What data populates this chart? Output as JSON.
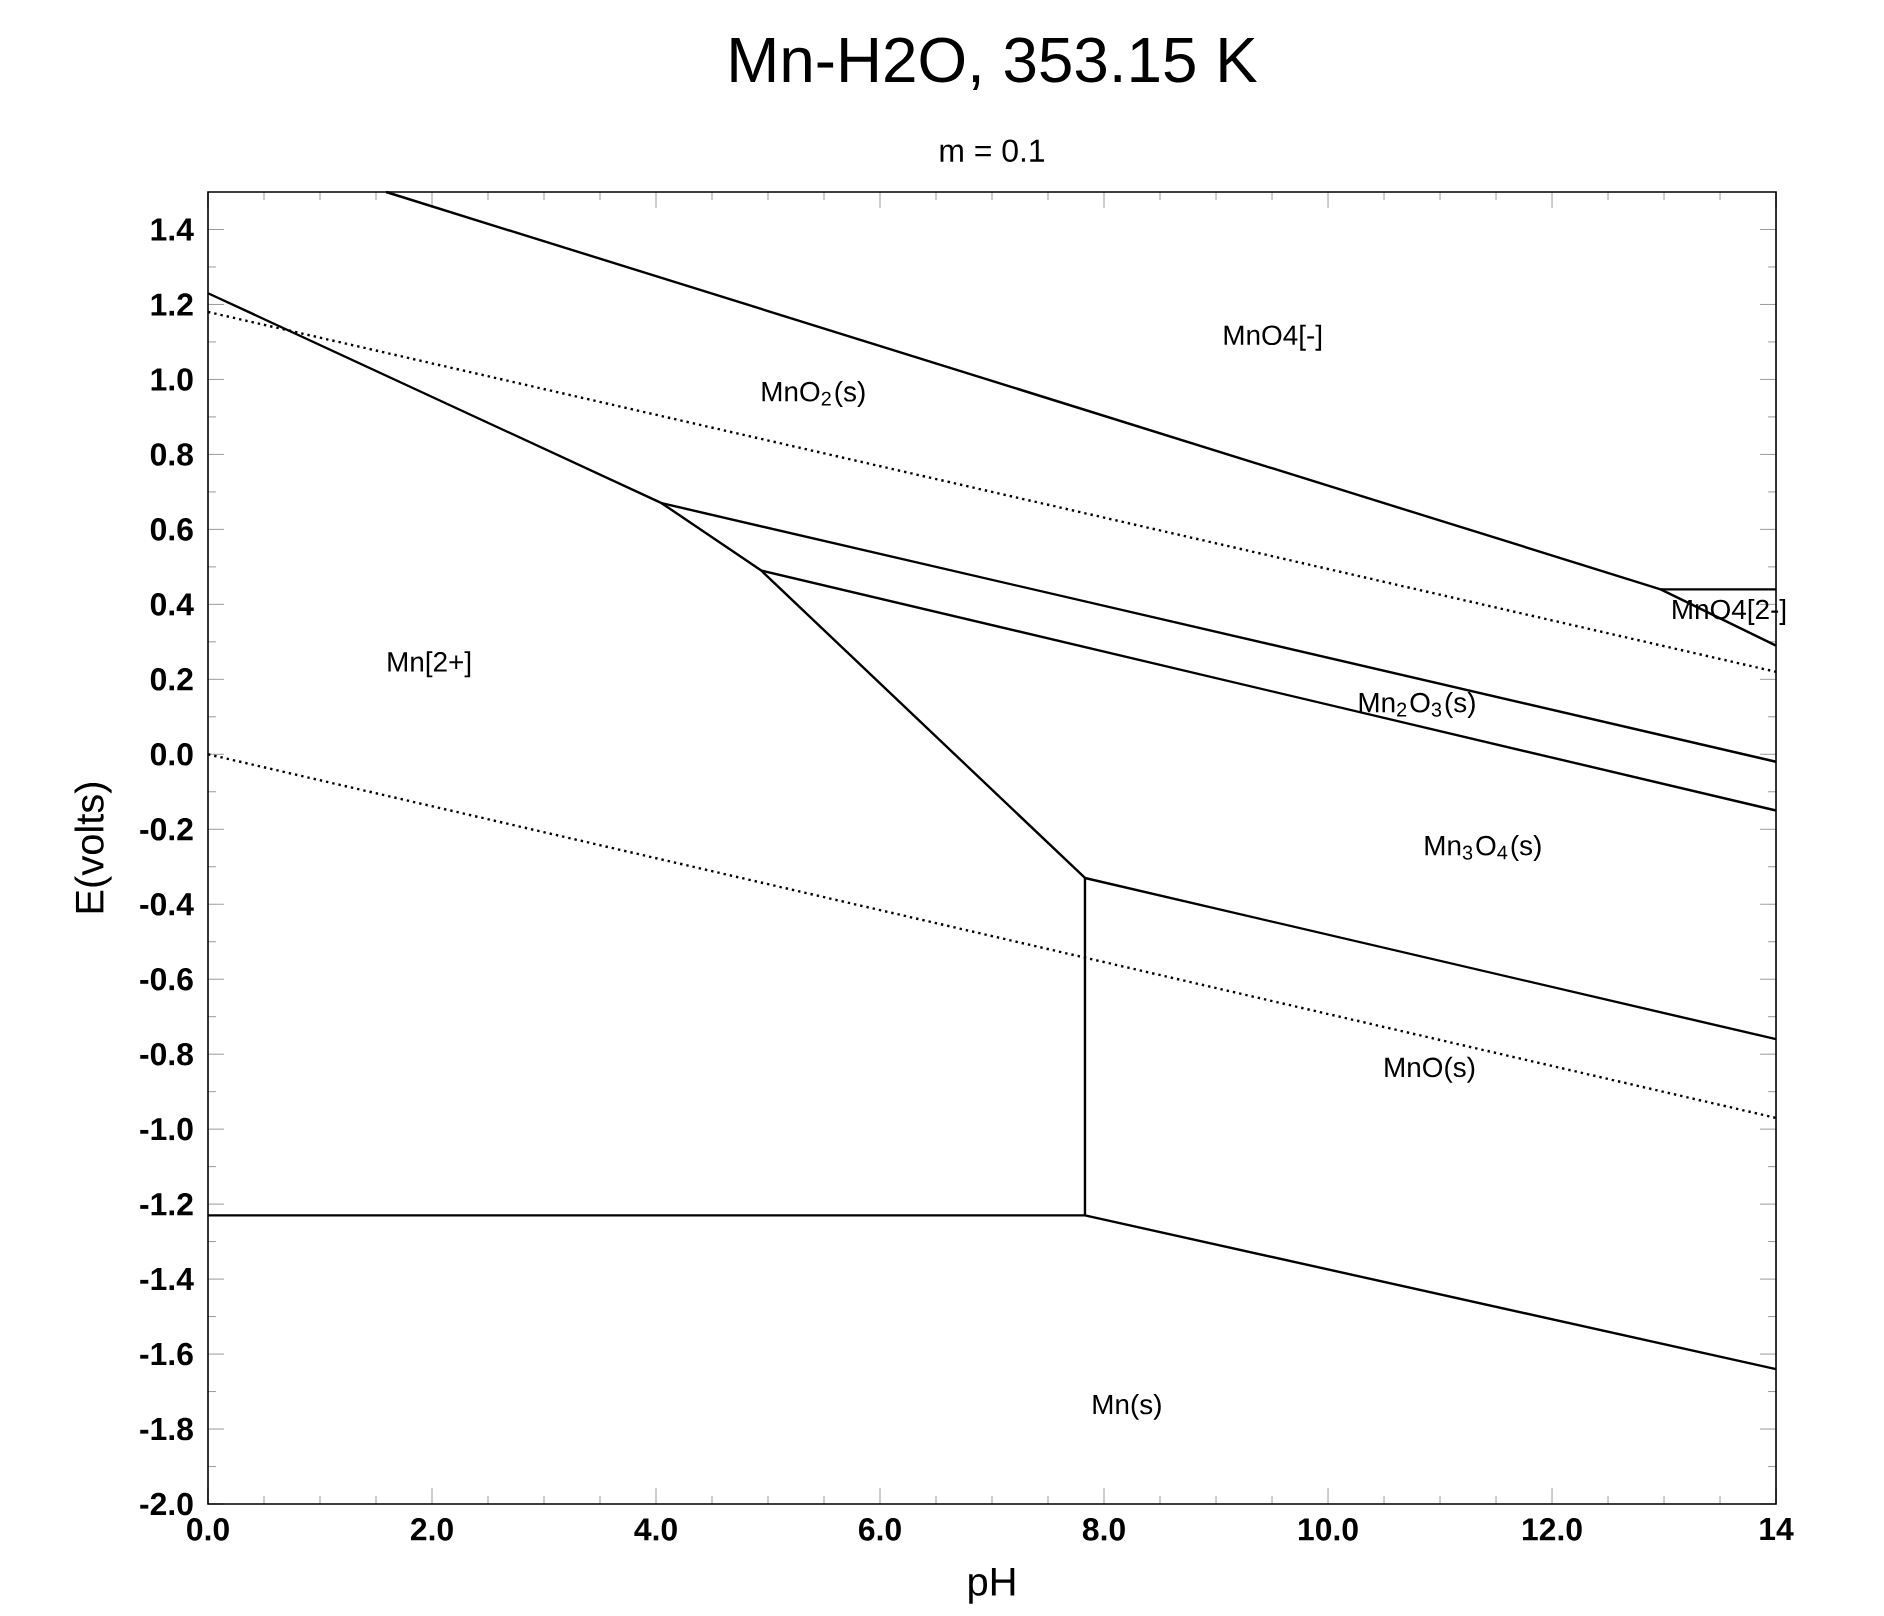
{
  "chart_data": {
    "type": "line",
    "title": "Mn-H2O, 353.15 K",
    "subtitle": "m = 0.1",
    "xlabel": "pH",
    "ylabel": "E(volts)",
    "xlim": [
      0,
      14
    ],
    "ylim": [
      -2.0,
      1.5
    ],
    "xticks": [
      {
        "value": 0,
        "label": "0.0"
      },
      {
        "value": 2,
        "label": "2.0"
      },
      {
        "value": 4,
        "label": "4.0"
      },
      {
        "value": 6,
        "label": "6.0"
      },
      {
        "value": 8,
        "label": "8.0"
      },
      {
        "value": 10,
        "label": "10.0"
      },
      {
        "value": 12,
        "label": "12.0"
      },
      {
        "value": 14,
        "label": "14"
      }
    ],
    "yticks": [
      {
        "value": -2.0,
        "label": "-2.0"
      },
      {
        "value": -1.8,
        "label": "-1.8"
      },
      {
        "value": -1.6,
        "label": "-1.6"
      },
      {
        "value": -1.4,
        "label": "-1.4"
      },
      {
        "value": -1.2,
        "label": "-1.2"
      },
      {
        "value": -1.0,
        "label": "-1.0"
      },
      {
        "value": -0.8,
        "label": "-0.8"
      },
      {
        "value": -0.6,
        "label": "-0.6"
      },
      {
        "value": -0.4,
        "label": "-0.4"
      },
      {
        "value": -0.2,
        "label": "-0.2"
      },
      {
        "value": 0.0,
        "label": "0.0"
      },
      {
        "value": 0.2,
        "label": "0.2"
      },
      {
        "value": 0.4,
        "label": "0.4"
      },
      {
        "value": 0.6,
        "label": "0.6"
      },
      {
        "value": 0.8,
        "label": "0.8"
      },
      {
        "value": 1.0,
        "label": "1.0"
      },
      {
        "value": 1.2,
        "label": "1.2"
      },
      {
        "value": 1.4,
        "label": "1.4"
      }
    ],
    "marker": "none",
    "line_style": "solid",
    "series": [
      {
        "color": "#000000",
        "x": [
          1.59,
          12.97,
          14
        ],
        "values": [
          1.5,
          0.44,
          0.29
        ]
      },
      {
        "color": "#000000",
        "x": [
          12.97,
          14
        ],
        "values": [
          0.44,
          0.44
        ]
      },
      {
        "color": "#000000",
        "x": [
          0,
          4.05,
          4.94,
          7.83
        ],
        "values": [
          1.23,
          0.67,
          0.49,
          -0.33
        ]
      },
      {
        "color": "#000000",
        "x": [
          4.05,
          14
        ],
        "values": [
          0.67,
          -0.02
        ]
      },
      {
        "color": "#000000",
        "x": [
          4.94,
          14
        ],
        "values": [
          0.49,
          -0.15
        ]
      },
      {
        "color": "#000000",
        "x": [
          7.83,
          14
        ],
        "values": [
          -0.33,
          -0.76
        ]
      },
      {
        "color": "#000000",
        "x": [
          7.83,
          7.83
        ],
        "values": [
          -0.33,
          -1.23
        ]
      },
      {
        "color": "#000000",
        "x": [
          0,
          7.83,
          14
        ],
        "values": [
          -1.23,
          -1.23,
          -1.64
        ]
      },
      {
        "color": "#000000",
        "line_style": "dotted",
        "x": [
          0,
          14
        ],
        "values": [
          1.18,
          0.22
        ]
      },
      {
        "color": "#000000",
        "line_style": "dotted",
        "x": [
          0,
          14
        ],
        "values": [
          0.0,
          -0.97
        ]
      }
    ],
    "annotations": [
      "MnO4[-]",
      "MnO$_{2}$(s)",
      "MnO4[2-]",
      "Mn[2+]",
      "Mn$_{2}$O$_{3}$(s)",
      "Mn$_{3}$O$_{4}$(s)",
      "MnO(s)",
      "Mn(s)"
    ]
  }
}
